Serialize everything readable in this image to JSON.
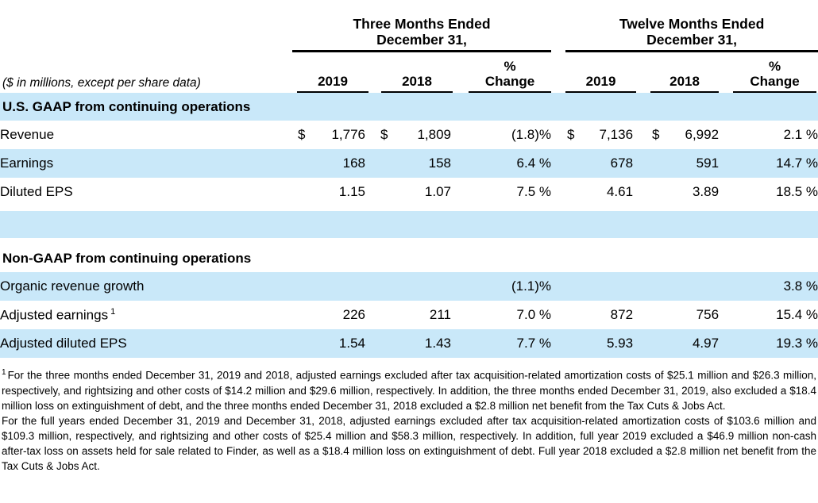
{
  "colors": {
    "band_blue": "#c9e8f9"
  },
  "header": {
    "note": "($ in millions, except per share data)",
    "three_months": {
      "line1": "Three Months Ended",
      "line2": "December 31,"
    },
    "twelve_months": {
      "line1": "Twelve Months Ended",
      "line2": "December 31,"
    },
    "col_2019": "2019",
    "col_2018": "2018",
    "col_pct_line1": "%",
    "col_pct_line2": "Change"
  },
  "rows": {
    "gaap_header": "U.S. GAAP from continuing operations",
    "revenue": {
      "label": "Revenue",
      "dollar": "$",
      "tm2019": "1,776",
      "tm2018": "1,809",
      "tm_chg": "(1.8)%",
      "twm2019": "7,136",
      "twm2018": "6,992",
      "twm_chg": "2.1 %"
    },
    "earnings": {
      "label": "Earnings",
      "tm2019": "168",
      "tm2018": "158",
      "tm_chg": "6.4 %",
      "twm2019": "678",
      "twm2018": "591",
      "twm_chg": "14.7 %"
    },
    "diluted_eps": {
      "label": "Diluted EPS",
      "tm2019": "1.15",
      "tm2018": "1.07",
      "tm_chg": "7.5 %",
      "twm2019": "4.61",
      "twm2018": "3.89",
      "twm_chg": "18.5 %"
    },
    "nongaap_header": "Non-GAAP from continuing operations",
    "organic": {
      "label": "Organic revenue growth",
      "tm_chg": "(1.1)%",
      "twm_chg": "3.8 %"
    },
    "adj_earnings": {
      "label": "Adjusted earnings",
      "footnote_ref": "1",
      "tm2019": "226",
      "tm2018": "211",
      "tm_chg": "7.0 %",
      "twm2019": "872",
      "twm2018": "756",
      "twm_chg": "15.4 %"
    },
    "adj_eps": {
      "label": "Adjusted diluted EPS",
      "tm2019": "1.54",
      "tm2018": "1.43",
      "tm_chg": "7.7 %",
      "twm2019": "5.93",
      "twm2018": "4.97",
      "twm_chg": "19.3 %"
    }
  },
  "footnotes": {
    "sup": "1",
    "para1": "For the three months ended December 31, 2019 and 2018, adjusted earnings excluded after tax acquisition-related amortization costs of $25.1 million and $26.3 million, respectively, and rightsizing and other costs of $14.2 million and $29.6 million, respectively. In addition, the three months ended December 31, 2019, also excluded a $18.4 million loss on extinguishment of debt, and the three months ended December 31, 2018 excluded a $2.8 million net benefit from the Tax Cuts & Jobs Act.",
    "para2": "For the full years ended December 31, 2019 and December 31, 2018, adjusted earnings excluded after tax acquisition-related amortization costs of $103.6 million and $109.3 million, respectively, and rightsizing and other costs of $25.4 million and $58.3 million, respectively. In addition, full year 2019 excluded a $46.9 million non-cash after-tax loss on assets held for sale related to Finder, as well as a $18.4 million loss on extinguishment of debt. Full year 2018 excluded a $2.8 million net benefit from the Tax Cuts & Jobs Act."
  }
}
